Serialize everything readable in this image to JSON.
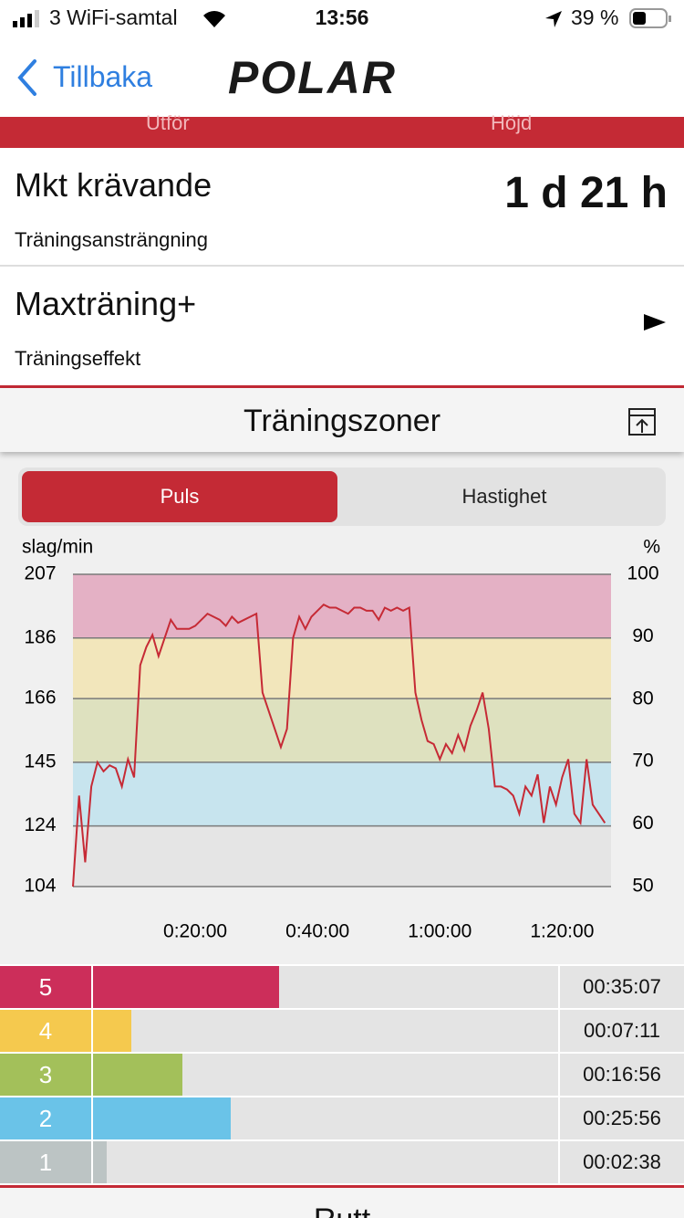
{
  "status_bar": {
    "carrier": "3 WiFi-samtal",
    "time": "13:56",
    "battery": "39 %"
  },
  "nav": {
    "back": "Tillbaka",
    "logo": "POLAR"
  },
  "tabs_strip": [
    "Utför",
    "Höjd"
  ],
  "rows": [
    {
      "title": "Mkt krävande",
      "subtitle": "Träningsansträngning",
      "value": "1 d 21 h"
    },
    {
      "title": "Maxträning+",
      "subtitle": "Träningseffekt"
    }
  ],
  "section": {
    "title": "Träningszoner"
  },
  "segments": [
    "Puls",
    "Hastighet"
  ],
  "chart_data": {
    "type": "line",
    "y_label": "slag/min",
    "y2_label": "%",
    "x": [
      0,
      1,
      2,
      3,
      4,
      5,
      6,
      7,
      8,
      9,
      10,
      11,
      12,
      13,
      14,
      15,
      16,
      17,
      18,
      19,
      20,
      21,
      22,
      23,
      24,
      25,
      26,
      27,
      28,
      29,
      30,
      31,
      32,
      33,
      34,
      35,
      36,
      37,
      38,
      39,
      40,
      41,
      42,
      43,
      44,
      45,
      46,
      47,
      48,
      49,
      50,
      51,
      52,
      53,
      54,
      55,
      56,
      57,
      58,
      59,
      60,
      61,
      62,
      63,
      64,
      65,
      66,
      67,
      68,
      69,
      70,
      71,
      72,
      73,
      74,
      75,
      76,
      77,
      78,
      79,
      80,
      81,
      82,
      83,
      84,
      85,
      86,
      87
    ],
    "series": [
      {
        "name": "Puls",
        "color": "#c62a35",
        "values": [
          104,
          134,
          112,
          137,
          145,
          142,
          144,
          143,
          137,
          146,
          140,
          177,
          183,
          187,
          180,
          186,
          192,
          189,
          189,
          189,
          190,
          192,
          194,
          193,
          192,
          190,
          193,
          191,
          192,
          193,
          194,
          168,
          162,
          156,
          150,
          156,
          186,
          193,
          189,
          193,
          195,
          197,
          196,
          196,
          195,
          194,
          196,
          196,
          195,
          195,
          192,
          196,
          195,
          196,
          195,
          196,
          168,
          159,
          152,
          151,
          146,
          151,
          148,
          154,
          149,
          157,
          162,
          168,
          156,
          137,
          137,
          136,
          134,
          128,
          137,
          134,
          141,
          125,
          137,
          131,
          140,
          146,
          128,
          125,
          146,
          131,
          128,
          125
        ]
      }
    ],
    "xlim": [
      0,
      88
    ],
    "xticks": [
      {
        "value": 20,
        "label": "0:20:00"
      },
      {
        "value": 40,
        "label": "0:40:00"
      },
      {
        "value": 60,
        "label": "1:00:00"
      },
      {
        "value": 80,
        "label": "1:20:00"
      }
    ],
    "ylim": [
      104,
      207
    ],
    "yticks": [
      207,
      186,
      166,
      145,
      124,
      104
    ],
    "y2lim": [
      50,
      100
    ],
    "y2ticks": [
      100,
      90,
      80,
      70,
      60,
      50
    ],
    "band_colors": [
      "#e4b1c5",
      "#f2e6bb",
      "#dee1bf",
      "#c7e4ee",
      "#e5e5e5"
    ],
    "grid": true
  },
  "zones": [
    {
      "zone": "5",
      "color": "#cc2e5a",
      "time": "00:35:07"
    },
    {
      "zone": "4",
      "color": "#f5c94e",
      "time": "00:07:11"
    },
    {
      "zone": "3",
      "color": "#a3c05a",
      "time": "00:16:56"
    },
    {
      "zone": "2",
      "color": "#6ac3e8",
      "time": "00:25:56"
    },
    {
      "zone": "1",
      "color": "#bcc4c4",
      "time": "00:02:38"
    }
  ],
  "next_section": {
    "title": "Rutt"
  }
}
